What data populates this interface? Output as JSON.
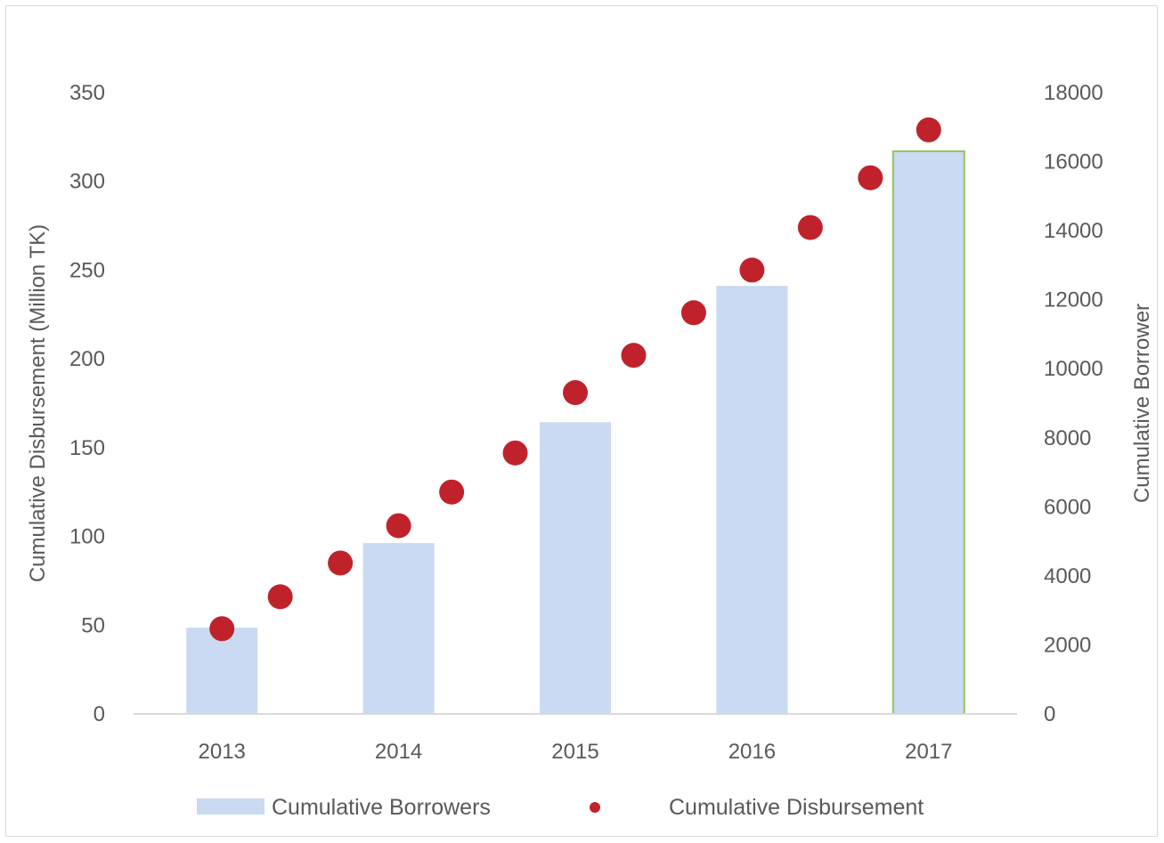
{
  "chart_data": {
    "type": "bar",
    "categories": [
      "2013",
      "2014",
      "2015",
      "2016",
      "2017"
    ],
    "series": [
      {
        "name": "Cumulative Borrowers",
        "type": "bar",
        "axis": "right",
        "values": [
          2500,
          4950,
          8450,
          12400,
          16300
        ]
      },
      {
        "name": "Cumulative Disbursement",
        "type": "scatter",
        "axis": "left",
        "x": [
          0,
          0.33,
          0.67,
          1.0,
          1.3,
          1.66,
          2.0,
          2.33,
          2.67,
          3.0,
          3.33,
          3.67,
          4.0
        ],
        "values": [
          48,
          66,
          85,
          106,
          125,
          147,
          181,
          202,
          226,
          250,
          274,
          302,
          329
        ]
      }
    ],
    "title": "",
    "xlabel": "",
    "ylabel": "Cumulative Disbursement (Million TK)",
    "y2label": "Cumulative Borrower",
    "ylim": [
      0,
      350
    ],
    "y2lim": [
      0,
      18000
    ],
    "yticks": [
      "0",
      "50",
      "100",
      "150",
      "200",
      "250",
      "300",
      "350"
    ],
    "y2ticks": [
      "0",
      "2000",
      "4000",
      "6000",
      "8000",
      "10000",
      "12000",
      "14000",
      "16000",
      "18000"
    ],
    "grid": false,
    "legend": "bottom",
    "colors": {
      "bar": "#c9daf2",
      "bar_highlight_border": "#92c45a",
      "marker": "#c0222b",
      "axis": "#d9d9d9",
      "text": "#595959"
    }
  }
}
